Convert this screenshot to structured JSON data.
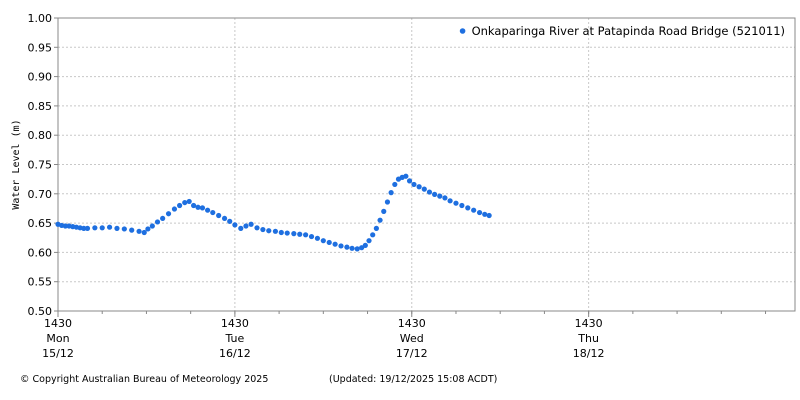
{
  "chart_data": {
    "type": "scatter",
    "title": "",
    "ylabel": "Water Level (m)",
    "xlabel": "",
    "ylim": [
      0.5,
      1.0
    ],
    "yticks": [
      "0.50",
      "0.55",
      "0.60",
      "0.65",
      "0.70",
      "0.75",
      "0.80",
      "0.85",
      "0.90",
      "0.95",
      "1.00"
    ],
    "x_unit": "hours since Mon 15/12 14:30",
    "xlim_hours": [
      0,
      100
    ],
    "xticks": [
      {
        "time": "1430",
        "day": "Mon",
        "date": "15/12",
        "hour": 0
      },
      {
        "time": "1430",
        "day": "Tue",
        "date": "16/12",
        "hour": 24
      },
      {
        "time": "1430",
        "day": "Wed",
        "date": "17/12",
        "hour": 48
      },
      {
        "time": "1430",
        "day": "Thu",
        "date": "18/12",
        "hour": 72
      }
    ],
    "grid": true,
    "legend_position": "top-right",
    "series": [
      {
        "name": "Onkaparinga River at Patapinda Road Bridge (521011)",
        "color": "#1e6fe0",
        "points": [
          [
            0,
            0.648
          ],
          [
            0.5,
            0.646
          ],
          [
            1.0,
            0.645
          ],
          [
            1.5,
            0.645
          ],
          [
            2.0,
            0.644
          ],
          [
            2.5,
            0.643
          ],
          [
            3.0,
            0.642
          ],
          [
            3.5,
            0.641
          ],
          [
            4.0,
            0.641
          ],
          [
            5.0,
            0.642
          ],
          [
            6.0,
            0.642
          ],
          [
            7.0,
            0.643
          ],
          [
            8.0,
            0.641
          ],
          [
            9.0,
            0.64
          ],
          [
            10.0,
            0.638
          ],
          [
            11.0,
            0.636
          ],
          [
            11.7,
            0.634
          ],
          [
            12.2,
            0.64
          ],
          [
            12.8,
            0.645
          ],
          [
            13.5,
            0.652
          ],
          [
            14.2,
            0.658
          ],
          [
            15.0,
            0.666
          ],
          [
            15.8,
            0.674
          ],
          [
            16.5,
            0.68
          ],
          [
            17.2,
            0.685
          ],
          [
            17.8,
            0.687
          ],
          [
            18.4,
            0.68
          ],
          [
            19.0,
            0.677
          ],
          [
            19.6,
            0.676
          ],
          [
            20.3,
            0.672
          ],
          [
            21.0,
            0.668
          ],
          [
            21.8,
            0.663
          ],
          [
            22.6,
            0.658
          ],
          [
            23.3,
            0.653
          ],
          [
            24.0,
            0.647
          ],
          [
            24.8,
            0.641
          ],
          [
            25.5,
            0.645
          ],
          [
            26.2,
            0.648
          ],
          [
            27.0,
            0.642
          ],
          [
            27.8,
            0.639
          ],
          [
            28.6,
            0.637
          ],
          [
            29.5,
            0.636
          ],
          [
            30.3,
            0.634
          ],
          [
            31.1,
            0.633
          ],
          [
            32.0,
            0.632
          ],
          [
            32.8,
            0.631
          ],
          [
            33.6,
            0.63
          ],
          [
            34.4,
            0.627
          ],
          [
            35.2,
            0.624
          ],
          [
            36.0,
            0.62
          ],
          [
            36.8,
            0.617
          ],
          [
            37.6,
            0.614
          ],
          [
            38.4,
            0.611
          ],
          [
            39.2,
            0.609
          ],
          [
            39.9,
            0.607
          ],
          [
            40.6,
            0.606
          ],
          [
            41.2,
            0.608
          ],
          [
            41.7,
            0.612
          ],
          [
            42.2,
            0.62
          ],
          [
            42.7,
            0.63
          ],
          [
            43.2,
            0.641
          ],
          [
            43.7,
            0.655
          ],
          [
            44.2,
            0.67
          ],
          [
            44.7,
            0.686
          ],
          [
            45.2,
            0.702
          ],
          [
            45.7,
            0.716
          ],
          [
            46.2,
            0.725
          ],
          [
            46.7,
            0.728
          ],
          [
            47.2,
            0.73
          ],
          [
            47.7,
            0.722
          ],
          [
            48.3,
            0.716
          ],
          [
            49.0,
            0.712
          ],
          [
            49.7,
            0.708
          ],
          [
            50.4,
            0.703
          ],
          [
            51.1,
            0.699
          ],
          [
            51.8,
            0.696
          ],
          [
            52.5,
            0.693
          ],
          [
            53.2,
            0.688
          ],
          [
            54.0,
            0.684
          ],
          [
            54.8,
            0.68
          ],
          [
            55.6,
            0.676
          ],
          [
            56.4,
            0.672
          ],
          [
            57.2,
            0.668
          ],
          [
            57.9,
            0.665
          ],
          [
            58.5,
            0.663
          ]
        ]
      }
    ]
  },
  "footer": {
    "copyright": "© Copyright Australian Bureau of Meteorology 2025",
    "updated": "(Updated: 19/12/2025 15:08 ACDT)"
  }
}
